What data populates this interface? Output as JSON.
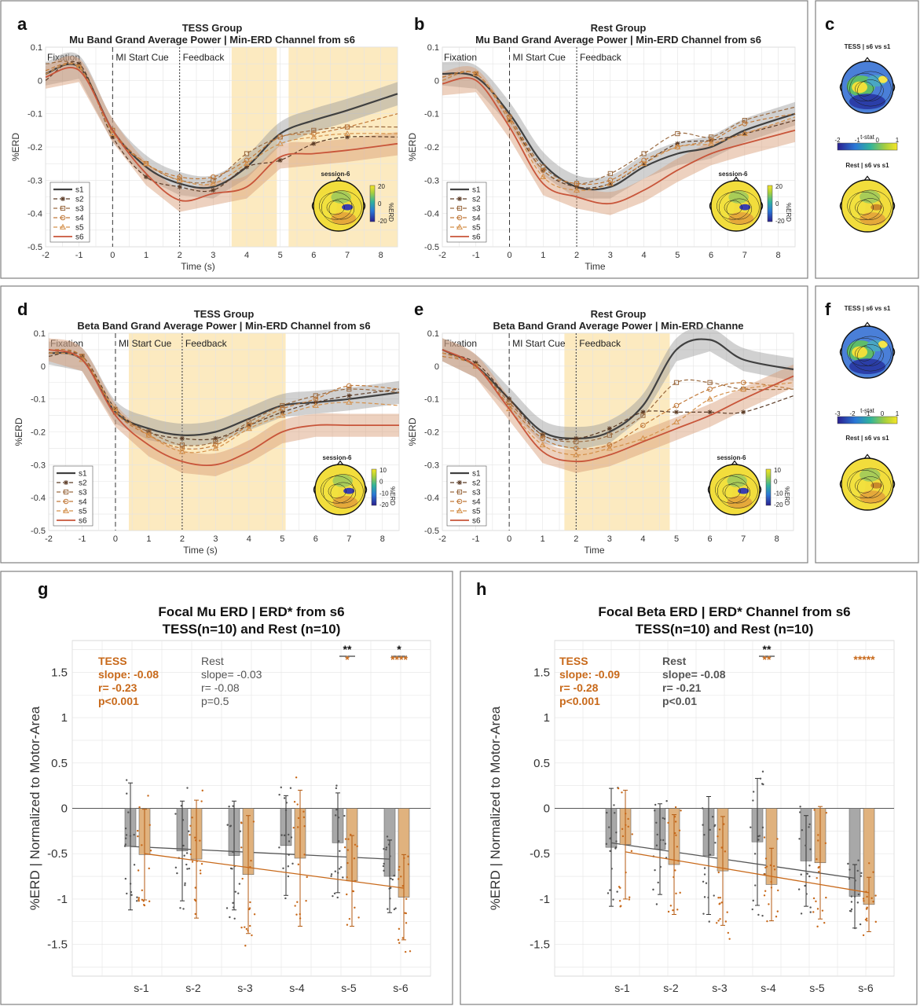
{
  "colors": {
    "s1": "#404040",
    "s2": "#5a3a25",
    "s3": "#9a6a40",
    "s4": "#c07838",
    "s5": "#d4904a",
    "s6": "#c8553a",
    "highlight": "#fbe6b5",
    "tess": "#c8691a",
    "rest": "#555555",
    "bar_tess": "#e0b27e",
    "bar_rest": "#a8a8a8"
  },
  "icons": [
    "topoplot-head-icon"
  ],
  "line_panels": [
    {
      "letter": "a",
      "title1": "TESS Group",
      "title2": "Mu Band Grand Average Power | Min-ERD Channel from s6",
      "xlabel": "Time (s)",
      "ylabel": "%ERD",
      "topo_label": "session-6",
      "cb_ticks": [
        "20",
        "0",
        "-20"
      ],
      "cb_label": "%ERD",
      "highlights": [
        [
          3.55,
          4.9
        ],
        [
          5.25,
          8.5
        ]
      ]
    },
    {
      "letter": "b",
      "title1": "Rest Group",
      "title2": "Mu Band Grand Average Power | Min-ERD Channel from s6",
      "xlabel": "Time",
      "ylabel": "%ERD",
      "topo_label": "session-6",
      "cb_ticks": [
        "20",
        "0",
        "-20"
      ],
      "cb_label": "%ERD",
      "highlights": []
    },
    {
      "letter": "d",
      "title1": "TESS Group",
      "title2": "Beta Band Grand Average Power | Min-ERD Channel from s6",
      "xlabel": "Time (s)",
      "ylabel": "%ERD",
      "topo_label": "session-6",
      "cb_ticks": [
        "10",
        "0",
        "-10",
        "-20"
      ],
      "cb_label": "%ERD",
      "highlights": [
        [
          0.4,
          5.1
        ]
      ]
    },
    {
      "letter": "e",
      "title1": "Rest Group",
      "title2": "Beta Band Grand Average Power | Min-ERD Channe",
      "xlabel": "Time",
      "ylabel": "%ERD",
      "topo_label": "session-6",
      "cb_ticks": [
        "10",
        "0",
        "-10",
        "-20"
      ],
      "cb_label": "%ERD",
      "highlights": [
        [
          1.65,
          4.8
        ]
      ]
    }
  ],
  "events": {
    "fixation": "Fixation",
    "cue": "MI Start Cue",
    "feedback": "Feedback"
  },
  "legend": [
    "s1",
    "s2",
    "s3",
    "s4",
    "s5",
    "s6"
  ],
  "line_xticks": [
    "-2",
    "-1",
    "0",
    "1",
    "2",
    "3",
    "4",
    "5",
    "6",
    "7",
    "8"
  ],
  "line_yticks": [
    "0.1",
    "0",
    "-0.1",
    "-0.2",
    "-0.3",
    "-0.4",
    "-0.5"
  ],
  "topo_panels": [
    {
      "letter": "c",
      "title_top": "TESS | s6 vs s1",
      "title_bottom": "Rest | s6 vs s1",
      "cb_label": "t-stat",
      "cb_ticks": [
        "-2",
        "-1",
        "0",
        "1"
      ]
    },
    {
      "letter": "f",
      "title_top": "TESS | s6 vs s1",
      "title_bottom": "Rest | s6 vs s1",
      "cb_label": "t-stat",
      "cb_ticks": [
        "-3",
        "-2",
        "-1",
        "0",
        "1"
      ]
    }
  ],
  "bar_panels": [
    {
      "letter": "g",
      "title1": "Focal Mu ERD | ERD* from s6",
      "title2": "TESS(n=10) and Rest (n=10)",
      "ylabel": "%ERD | Normalized to Motor-Area",
      "tess_stats": [
        "TESS",
        "slope: -0.08",
        "r= -0.23",
        "p<0.001"
      ],
      "rest_stats": [
        "Rest",
        "slope= -0.03",
        "r= -0.08",
        "p=0.5"
      ],
      "sig": [
        {
          "s": 4,
          "top": "**",
          "bottom": "*"
        },
        {
          "s": 5,
          "top": "*",
          "bottom": "****"
        }
      ]
    },
    {
      "letter": "h",
      "title1": "Focal Beta ERD | ERD* Channel from s6",
      "title2": "TESS(n=10) and Rest (n=10)",
      "ylabel": "%ERD | Normalized to Motor-Area",
      "tess_stats": [
        "TESS",
        "slope: -0.09",
        "r= -0.28",
        "p<0.001"
      ],
      "rest_stats": [
        "Rest",
        "slope= -0.08",
        "r= -0.21",
        "p<0.01"
      ],
      "sig": [
        {
          "s": 3,
          "top": "**",
          "bottom": "**"
        },
        {
          "s": 5,
          "top": "",
          "bottom": "*****"
        }
      ]
    }
  ],
  "bar_xticks": [
    "s-1",
    "s-2",
    "s-3",
    "s-4",
    "s-5",
    "s-6"
  ],
  "bar_yticks": [
    "1.5",
    "1",
    "0.5",
    "0",
    "-0.5",
    "-1",
    "-1.5"
  ],
  "chart_data": [
    {
      "type": "line",
      "panel": "a",
      "x": [
        -2,
        -1,
        0,
        1,
        2,
        3,
        4,
        5,
        6,
        7,
        8.5
      ],
      "ylim": [
        -0.5,
        0.1
      ],
      "xlim": [
        -2,
        8.5
      ],
      "series": [
        {
          "name": "s1",
          "values": [
            0.02,
            0.04,
            -0.15,
            -0.26,
            -0.31,
            -0.32,
            -0.26,
            -0.16,
            -0.12,
            -0.09,
            -0.04
          ]
        },
        {
          "name": "s2",
          "values": [
            0.0,
            0.05,
            -0.17,
            -0.29,
            -0.32,
            -0.33,
            -0.26,
            -0.24,
            -0.19,
            -0.17,
            -0.17
          ]
        },
        {
          "name": "s3",
          "values": [
            0.05,
            0.04,
            -0.15,
            -0.25,
            -0.3,
            -0.3,
            -0.22,
            -0.17,
            -0.15,
            -0.14,
            -0.14
          ]
        },
        {
          "name": "s4",
          "values": [
            0.03,
            0.04,
            -0.15,
            -0.25,
            -0.29,
            -0.29,
            -0.24,
            -0.17,
            -0.16,
            -0.14,
            -0.1
          ]
        },
        {
          "name": "s5",
          "values": [
            0.02,
            0.04,
            -0.16,
            -0.25,
            -0.3,
            -0.31,
            -0.25,
            -0.19,
            -0.17,
            -0.16,
            -0.16
          ]
        },
        {
          "name": "s6",
          "values": [
            0.01,
            0.03,
            -0.15,
            -0.28,
            -0.36,
            -0.34,
            -0.32,
            -0.23,
            -0.22,
            -0.21,
            -0.19
          ]
        }
      ]
    },
    {
      "type": "line",
      "panel": "b",
      "x": [
        -2,
        -1,
        0,
        1,
        2,
        3,
        4,
        5,
        6,
        7,
        8.5
      ],
      "ylim": [
        -0.5,
        0.1
      ],
      "xlim": [
        -2,
        8.5
      ],
      "series": [
        {
          "name": "s1",
          "values": [
            0.02,
            0.01,
            -0.1,
            -0.25,
            -0.32,
            -0.32,
            -0.26,
            -0.22,
            -0.2,
            -0.15,
            -0.1
          ]
        },
        {
          "name": "s2",
          "values": [
            0.0,
            0.02,
            -0.12,
            -0.27,
            -0.32,
            -0.31,
            -0.25,
            -0.19,
            -0.18,
            -0.16,
            -0.12
          ]
        },
        {
          "name": "s3",
          "values": [
            0.01,
            0.02,
            -0.11,
            -0.26,
            -0.31,
            -0.28,
            -0.22,
            -0.16,
            -0.17,
            -0.12,
            -0.08
          ]
        },
        {
          "name": "s4",
          "values": [
            0.01,
            0.02,
            -0.11,
            -0.27,
            -0.31,
            -0.3,
            -0.24,
            -0.2,
            -0.18,
            -0.13,
            -0.1
          ]
        },
        {
          "name": "s5",
          "values": [
            0.0,
            0.02,
            -0.12,
            -0.29,
            -0.33,
            -0.31,
            -0.25,
            -0.2,
            -0.19,
            -0.16,
            -0.11
          ]
        },
        {
          "name": "s6",
          "values": [
            -0.01,
            0.0,
            -0.14,
            -0.31,
            -0.35,
            -0.37,
            -0.33,
            -0.27,
            -0.22,
            -0.19,
            -0.15
          ]
        }
      ]
    },
    {
      "type": "line",
      "panel": "d",
      "x": [
        -2,
        -1,
        0,
        1,
        2,
        3,
        4,
        5,
        6,
        7,
        8.5
      ],
      "ylim": [
        -0.5,
        0.1
      ],
      "xlim": [
        -2,
        8.5
      ],
      "series": [
        {
          "name": "s1",
          "values": [
            0.04,
            0.02,
            -0.14,
            -0.19,
            -0.21,
            -0.2,
            -0.16,
            -0.12,
            -0.11,
            -0.1,
            -0.08
          ]
        },
        {
          "name": "s2",
          "values": [
            0.03,
            0.03,
            -0.13,
            -0.2,
            -0.22,
            -0.22,
            -0.18,
            -0.14,
            -0.11,
            -0.09,
            -0.07
          ]
        },
        {
          "name": "s3",
          "values": [
            0.04,
            0.03,
            -0.14,
            -0.2,
            -0.24,
            -0.23,
            -0.17,
            -0.12,
            -0.09,
            -0.07,
            -0.08
          ]
        },
        {
          "name": "s4",
          "values": [
            0.05,
            0.03,
            -0.14,
            -0.21,
            -0.25,
            -0.24,
            -0.18,
            -0.13,
            -0.1,
            -0.06,
            -0.07
          ]
        },
        {
          "name": "s5",
          "values": [
            0.04,
            0.02,
            -0.13,
            -0.21,
            -0.26,
            -0.25,
            -0.19,
            -0.15,
            -0.12,
            -0.11,
            -0.12
          ]
        },
        {
          "name": "s6",
          "values": [
            0.05,
            0.02,
            -0.15,
            -0.24,
            -0.29,
            -0.3,
            -0.26,
            -0.2,
            -0.18,
            -0.18,
            -0.18
          ]
        }
      ]
    },
    {
      "type": "line",
      "panel": "e",
      "x": [
        -2,
        -1,
        0,
        1,
        2,
        3,
        4,
        5,
        6,
        7,
        8.5
      ],
      "ylim": [
        -0.5,
        0.1
      ],
      "xlim": [
        -2,
        8.5
      ],
      "series": [
        {
          "name": "s1",
          "values": [
            0.05,
            0.0,
            -0.1,
            -0.2,
            -0.22,
            -0.2,
            -0.12,
            0.05,
            0.08,
            0.02,
            -0.01
          ]
        },
        {
          "name": "s2",
          "values": [
            0.04,
            0.01,
            -0.1,
            -0.21,
            -0.22,
            -0.19,
            -0.14,
            -0.14,
            -0.14,
            -0.14,
            -0.09
          ]
        },
        {
          "name": "s3",
          "values": [
            0.04,
            0.0,
            -0.11,
            -0.21,
            -0.23,
            -0.21,
            -0.15,
            -0.05,
            -0.05,
            -0.07,
            -0.07
          ]
        },
        {
          "name": "s4",
          "values": [
            0.03,
            0.0,
            -0.12,
            -0.22,
            -0.25,
            -0.24,
            -0.18,
            -0.12,
            -0.07,
            -0.05,
            -0.07
          ]
        },
        {
          "name": "s5",
          "values": [
            0.04,
            0.0,
            -0.13,
            -0.24,
            -0.27,
            -0.25,
            -0.22,
            -0.17,
            -0.1,
            -0.07,
            -0.05
          ]
        },
        {
          "name": "s6",
          "values": [
            0.05,
            0.0,
            -0.13,
            -0.26,
            -0.29,
            -0.27,
            -0.23,
            -0.19,
            -0.15,
            -0.1,
            -0.03
          ]
        }
      ]
    },
    {
      "type": "bar",
      "panel": "g",
      "categories": [
        "s-1",
        "s-2",
        "s-3",
        "s-4",
        "s-5",
        "s-6"
      ],
      "ylim": [
        -1.85,
        1.85
      ],
      "series": [
        {
          "name": "Rest",
          "values": [
            -0.42,
            -0.47,
            -0.52,
            -0.41,
            -0.38,
            -0.75
          ],
          "errors": [
            0.7,
            0.55,
            0.6,
            0.55,
            0.55,
            0.4
          ],
          "trend": [
            -0.42,
            -0.56
          ]
        },
        {
          "name": "TESS",
          "values": [
            -0.51,
            -0.56,
            -0.73,
            -0.55,
            -0.8,
            -0.98
          ],
          "errors": [
            0.5,
            0.65,
            0.65,
            0.75,
            0.5,
            0.47
          ],
          "trend": [
            -0.5,
            -0.88
          ]
        }
      ]
    },
    {
      "type": "bar",
      "panel": "h",
      "categories": [
        "s-1",
        "s-2",
        "s-3",
        "s-4",
        "s-5",
        "s-6"
      ],
      "ylim": [
        -1.85,
        1.85
      ],
      "series": [
        {
          "name": "Rest",
          "values": [
            -0.43,
            -0.45,
            -0.52,
            -0.37,
            -0.58,
            -0.97
          ],
          "errors": [
            0.65,
            0.5,
            0.65,
            0.7,
            0.5,
            0.35
          ],
          "trend": [
            -0.38,
            -0.77
          ]
        },
        {
          "name": "TESS",
          "values": [
            -0.4,
            -0.62,
            -0.69,
            -0.84,
            -0.6,
            -1.06
          ],
          "errors": [
            0.6,
            0.55,
            0.6,
            0.4,
            0.62,
            0.3
          ],
          "trend": [
            -0.48,
            -0.93
          ]
        }
      ]
    }
  ]
}
